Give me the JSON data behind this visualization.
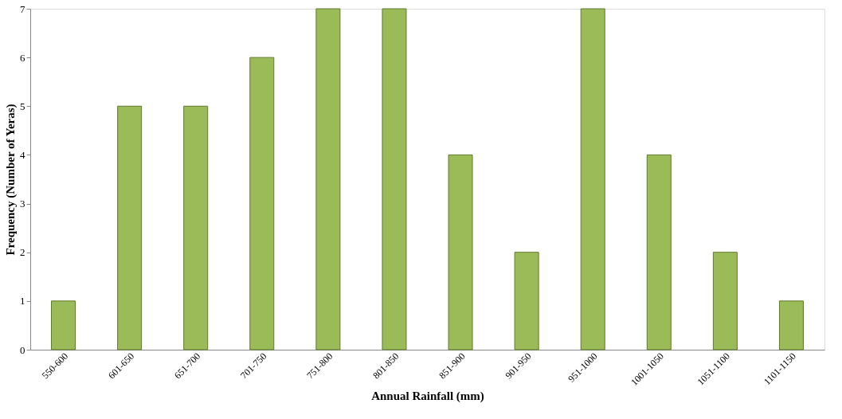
{
  "chart_data": {
    "type": "bar",
    "xlabel": "Annual Rainfall (mm)",
    "ylabel": "Frequency (Number of Yeras)",
    "categories": [
      "550-600",
      "601-650",
      "651-700",
      "701-750",
      "751-800",
      "801-850",
      "851-900",
      "901-950",
      "951-1000",
      "1001-1050",
      "1051-1100",
      "1101-1150"
    ],
    "values": [
      1,
      5,
      5,
      6,
      7,
      7,
      4,
      2,
      7,
      4,
      2,
      1
    ],
    "color": "#9bbb59",
    "ylim": [
      0,
      7
    ],
    "yticks": [
      0,
      1,
      2,
      3,
      4,
      5,
      6,
      7
    ],
    "grid": false
  }
}
